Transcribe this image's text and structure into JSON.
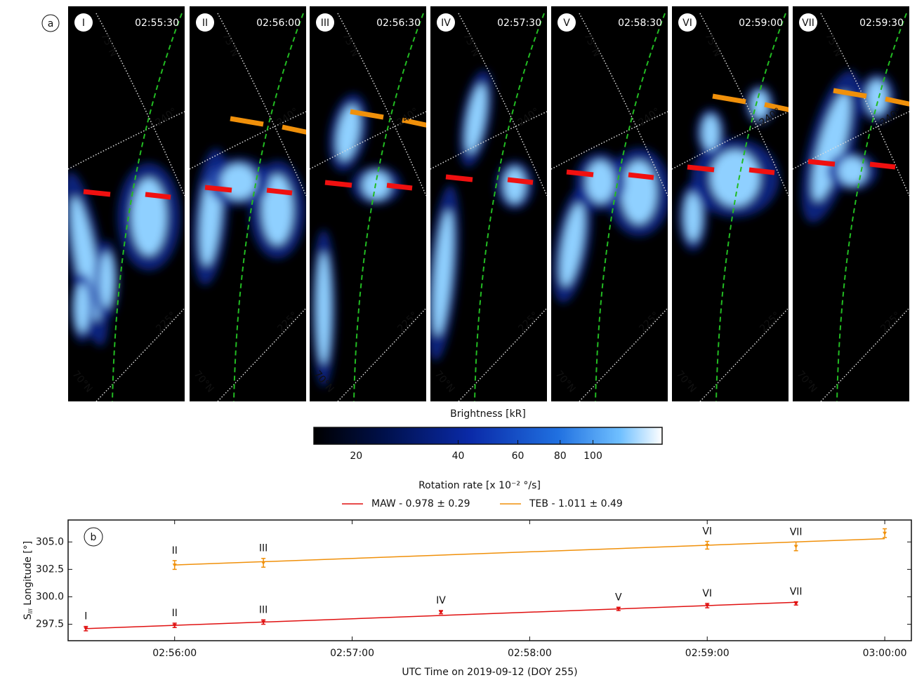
{
  "chart_data": [
    {
      "type": "image",
      "panel_letter": "a",
      "panels": [
        {
          "label": "I",
          "time": "02:55:30"
        },
        {
          "label": "II",
          "time": "02:56:00"
        },
        {
          "label": "III",
          "time": "02:56:30"
        },
        {
          "label": "IV",
          "time": "02:57:30"
        },
        {
          "label": "V",
          "time": "02:58:30"
        },
        {
          "label": "VI",
          "time": "02:59:00"
        },
        {
          "label": "VII",
          "time": "02:59:30"
        }
      ],
      "grid_labels": [
        "75°N",
        "240°",
        "225°",
        "70°N"
      ],
      "colorbar": {
        "label": "Brightness [kR]",
        "log": true,
        "clim": [
          15,
          160
        ],
        "ticks": [
          20,
          40,
          60,
          80,
          100
        ]
      }
    },
    {
      "type": "line",
      "panel_letter": "b",
      "legend_title": "Rotation rate [x 10⁻² °/s]",
      "xlabel": "UTC Time on 2019-09-12 (DOY 255)",
      "ylabel": {
        "main": "S",
        "sub": "III",
        "rest": " Longitude [°]"
      },
      "xlim": [
        "02:55:24",
        "03:00:09"
      ],
      "xticks": [
        "02:56:00",
        "02:57:00",
        "02:58:00",
        "02:59:00",
        "03:00:00"
      ],
      "ylim": [
        296,
        307
      ],
      "yticks": [
        297.5,
        {
          "value": 300,
          "label": "300.0"
        },
        302.5,
        {
          "value": 305,
          "label": "305.0"
        }
      ],
      "legend": "top-center",
      "series": [
        {
          "name": "MAW - 0.978 ± 0.29",
          "color": "#e01010",
          "x": [
            "02:55:30",
            "02:56:00",
            "02:56:30",
            "02:57:30",
            "02:58:30",
            "02:59:00",
            "02:59:30"
          ],
          "values": [
            297.1,
            297.4,
            297.7,
            298.6,
            298.9,
            299.2,
            299.4
          ],
          "errors": [
            0.2,
            0.2,
            0.2,
            0.15,
            0.15,
            0.2,
            0.15
          ],
          "point_labels": [
            "I",
            "II",
            "III",
            "IV",
            "V",
            "VI",
            "VII"
          ],
          "fit": {
            "x": [
              "02:55:30",
              "02:59:30"
            ],
            "values": [
              297.1,
              299.5
            ]
          }
        },
        {
          "name": "TEB - 1.011 ± 0.49",
          "color": "#f0900a",
          "x": [
            "02:56:00",
            "02:56:30",
            "02:59:00",
            "02:59:30",
            "03:00:00"
          ],
          "values": [
            302.9,
            303.1,
            304.7,
            304.6,
            305.8
          ],
          "errors": [
            0.4,
            0.4,
            0.35,
            0.4,
            0.4
          ],
          "point_labels": [
            "II",
            "III",
            "VI",
            "VII",
            null
          ],
          "fit": {
            "x": [
              "02:56:00",
              "03:00:00"
            ],
            "values": [
              302.9,
              305.3
            ]
          }
        }
      ]
    }
  ]
}
